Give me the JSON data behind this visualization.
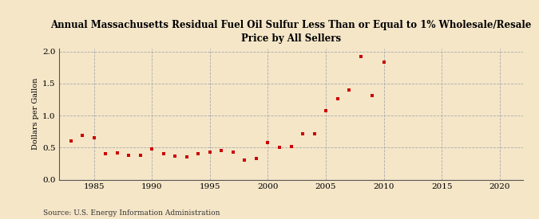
{
  "title_line1": "Annual Massachusetts Residual Fuel Oil Sulfur Less Than or Equal to 1% Wholesale/Resale",
  "title_line2": "Price by All Sellers",
  "ylabel": "Dollars per Gallon",
  "source": "Source: U.S. Energy Information Administration",
  "background_color": "#f5e6c8",
  "plot_bg_color": "#f5e6c8",
  "marker_color": "#cc0000",
  "xlim": [
    1982,
    2022
  ],
  "ylim": [
    0.0,
    2.05
  ],
  "xticks": [
    1985,
    1990,
    1995,
    2000,
    2005,
    2010,
    2015,
    2020
  ],
  "yticks": [
    0.0,
    0.5,
    1.0,
    1.5,
    2.0
  ],
  "years": [
    1983,
    1984,
    1985,
    1986,
    1987,
    1988,
    1989,
    1990,
    1991,
    1992,
    1993,
    1994,
    1995,
    1996,
    1997,
    1998,
    1999,
    2000,
    2001,
    2002,
    2003,
    2004,
    2005,
    2006,
    2007,
    2008,
    2009,
    2010
  ],
  "values": [
    0.6,
    0.69,
    0.65,
    0.4,
    0.42,
    0.38,
    0.38,
    0.48,
    0.4,
    0.37,
    0.36,
    0.4,
    0.43,
    0.45,
    0.43,
    0.3,
    0.33,
    0.58,
    0.5,
    0.52,
    0.71,
    0.71,
    1.07,
    1.26,
    1.4,
    1.92,
    1.31,
    1.83
  ]
}
